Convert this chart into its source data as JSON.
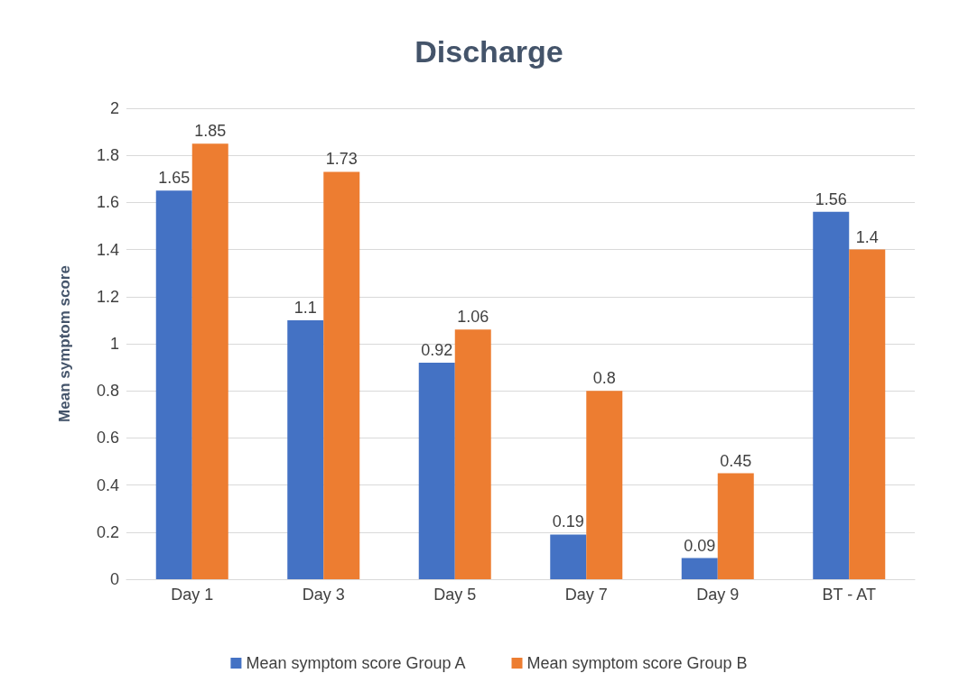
{
  "chart_data": {
    "type": "bar",
    "title": "Discharge",
    "ylabel": "Mean symptom score",
    "categories": [
      "Day 1",
      "Day 3",
      "Day 5",
      "Day 7",
      "Day 9",
      "BT - AT"
    ],
    "series": [
      {
        "name": "Mean symptom score Group A",
        "color": "#4472c4",
        "values": [
          1.65,
          1.1,
          0.92,
          0.19,
          0.09,
          1.56
        ]
      },
      {
        "name": "Mean symptom score Group B",
        "color": "#ed7d31",
        "values": [
          1.85,
          1.73,
          1.06,
          0.8,
          0.45,
          1.4
        ]
      }
    ],
    "ylim": [
      0,
      2
    ],
    "yticks": [
      0,
      0.2,
      0.4,
      0.6,
      0.8,
      1,
      1.2,
      1.4,
      1.6,
      1.8,
      2
    ],
    "grid": "y",
    "legend": "bottom",
    "data_labels": true
  }
}
